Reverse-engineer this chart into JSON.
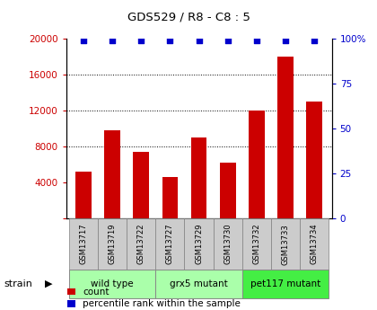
{
  "title": "GDS529 / R8 - C8 : 5",
  "samples": [
    "GSM13717",
    "GSM13719",
    "GSM13722",
    "GSM13727",
    "GSM13729",
    "GSM13730",
    "GSM13732",
    "GSM13733",
    "GSM13734"
  ],
  "counts": [
    5200,
    9800,
    7400,
    4600,
    9000,
    6200,
    12000,
    18000,
    13000
  ],
  "percentile_ranks": [
    99,
    99,
    99,
    99,
    99,
    99,
    99,
    99,
    99
  ],
  "bar_color": "#cc0000",
  "percentile_color": "#0000cc",
  "groups": [
    {
      "label": "wild type",
      "start": 0,
      "end": 2,
      "color": "#aaffaa"
    },
    {
      "label": "grx5 mutant",
      "start": 3,
      "end": 5,
      "color": "#aaffaa"
    },
    {
      "label": "pet117 mutant",
      "start": 6,
      "end": 8,
      "color": "#44ee44"
    }
  ],
  "ylim_left": [
    0,
    20000
  ],
  "ylim_right": [
    0,
    100
  ],
  "yticks_left": [
    0,
    4000,
    8000,
    12000,
    16000,
    20000
  ],
  "ytick_labels_left": [
    "",
    "4000",
    "8000",
    "12000",
    "16000",
    "20000"
  ],
  "yticks_right": [
    0,
    25,
    50,
    75,
    100
  ],
  "ytick_labels_right": [
    "0",
    "25",
    "50",
    "75",
    "100%"
  ],
  "grid_ticks": [
    8000,
    12000,
    16000
  ],
  "legend_count_label": "count",
  "legend_percentile_label": "percentile rank within the sample",
  "bg_color": "#ffffff",
  "tick_label_color_left": "#cc0000",
  "tick_label_color_right": "#0000cc",
  "sample_cell_color": "#cccccc",
  "bar_width": 0.55
}
